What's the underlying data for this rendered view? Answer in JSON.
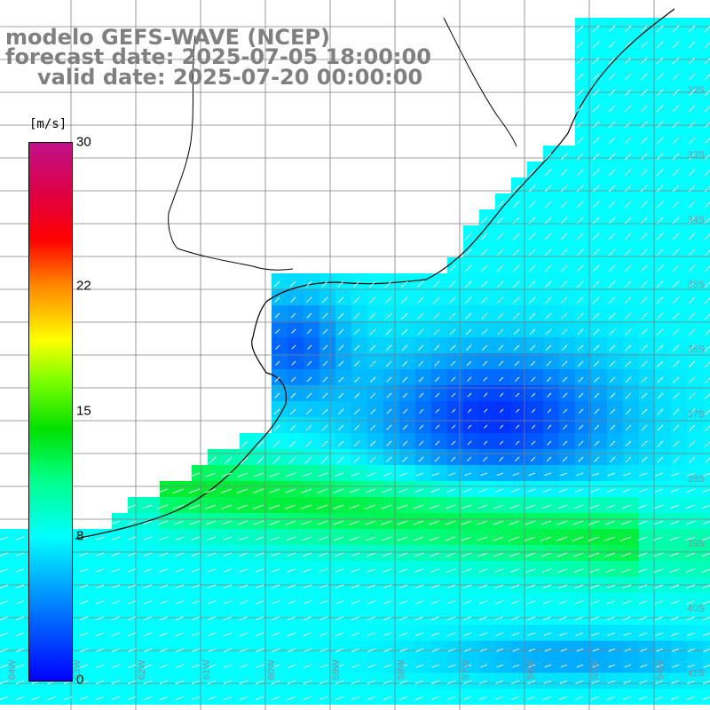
{
  "title": {
    "model": "modelo GEFS-WAVE (NCEP)",
    "forecast": "forecast date: 2025-07-05 18:00:00",
    "valid": "valid date: 2025-07-20 00:00:00"
  },
  "colorbar": {
    "unit": "[m/s]",
    "min": 0,
    "max": 30,
    "ticks": [
      "30",
      "22",
      "15",
      "8",
      "0"
    ],
    "tick_values": [
      30,
      22,
      15,
      8,
      0
    ],
    "colors": [
      "#0000ff",
      "#0080ff",
      "#00ffff",
      "#00ff80",
      "#00e000",
      "#80ff00",
      "#ffff00",
      "#ff8000",
      "#ff0000",
      "#c0108a"
    ]
  },
  "map": {
    "variable": "wind speed",
    "land_color": "#ffffff",
    "grid_color": "#808080",
    "coastline_color": "#000000",
    "arrow_color": "#ffffff",
    "lat_labels": [
      "32S",
      "33S",
      "34S",
      "35S",
      "36S",
      "37S",
      "38S",
      "39S",
      "40S",
      "41S"
    ],
    "lat_values": [
      32,
      33,
      34,
      35,
      36,
      37,
      38,
      39,
      40,
      41
    ],
    "lon_labels": [
      "64W",
      "63W",
      "62W",
      "61W",
      "60W",
      "59W",
      "58W",
      "57W",
      "56W",
      "55W",
      "54W"
    ],
    "lon_values": [
      64,
      63,
      62,
      61,
      60,
      59,
      58,
      57,
      56,
      55,
      54
    ]
  }
}
